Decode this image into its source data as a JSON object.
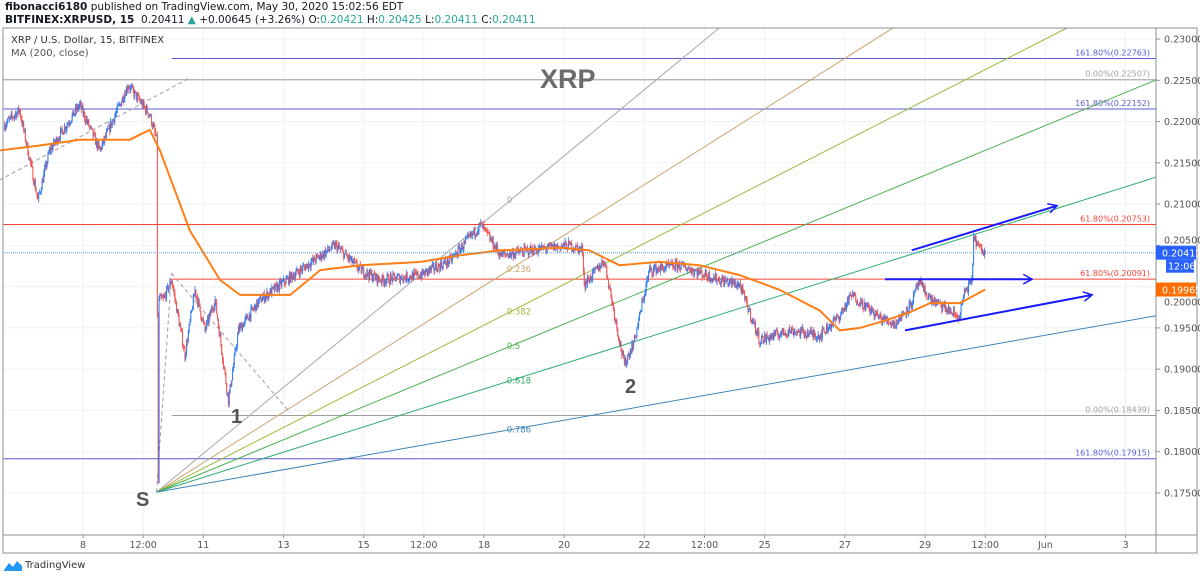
{
  "header": {
    "publisher": "fibonacci6180",
    "published_text": "published on TradingView.com, May 30, 2020 15:02:56 EDT",
    "symbol": "BITFINEX:XRPUSD, 15",
    "last": "0.20411",
    "change": "+0.00645 (+3.26%)",
    "o_label": "O:",
    "o": "0.20421",
    "h_label": "H:",
    "h": "0.20425",
    "l_label": "L:",
    "l": "0.20411",
    "c_label": "C:",
    "c": "0.20411"
  },
  "legend": {
    "title": "XRP / U.S. Dollar, 15, BITFINEX",
    "indicator": "MA (200, close)"
  },
  "brand": {
    "name": "TradingView",
    "icon": "tradingview-logo-icon"
  },
  "colors": {
    "up": "#3179f5",
    "down": "#ef5350",
    "ma": "#ff7f17",
    "last_price_bg": "#2962ff",
    "ma_label_bg": "#ff6d00",
    "grid": "#edf2f7",
    "arrow": "#1a1aff"
  },
  "chart_data": {
    "type": "candlestick",
    "timeframe": "15",
    "y_axis": {
      "range": [
        0.1715,
        0.232
      ],
      "ticks": [
        "0.23000",
        "0.22500",
        "0.22000",
        "0.21500",
        "0.21000",
        "0.20500",
        "0.20000",
        "0.19500",
        "0.19000",
        "0.18500",
        "0.18000",
        "0.17500"
      ],
      "tick_values": [
        0.23,
        0.225,
        0.22,
        0.215,
        0.21,
        0.205,
        0.2,
        0.195,
        0.19,
        0.185,
        0.18,
        0.175
      ]
    },
    "x_axis": {
      "ticks": [
        {
          "label": "8",
          "t": "2020-05-08T00:00"
        },
        {
          "label": "12:00",
          "t": "2020-05-09T12:00"
        },
        {
          "label": "11",
          "t": "2020-05-11T00:00"
        },
        {
          "label": "13",
          "t": "2020-05-13T00:00"
        },
        {
          "label": "15",
          "t": "2020-05-15T00:00"
        },
        {
          "label": "12:00",
          "t": "2020-05-16T12:00"
        },
        {
          "label": "18",
          "t": "2020-05-18T00:00"
        },
        {
          "label": "20",
          "t": "2020-05-20T00:00"
        },
        {
          "label": "22",
          "t": "2020-05-22T00:00"
        },
        {
          "label": "12:00",
          "t": "2020-05-23T12:00"
        },
        {
          "label": "25",
          "t": "2020-05-25T00:00"
        },
        {
          "label": "27",
          "t": "2020-05-27T00:00"
        },
        {
          "label": "29",
          "t": "2020-05-29T00:00"
        },
        {
          "label": "12:00",
          "t": "2020-05-30T12:00"
        },
        {
          "label": "Jun",
          "t": "2020-06-01T00:00"
        },
        {
          "label": "3",
          "t": "2020-06-03T00:00"
        }
      ]
    },
    "grid": true,
    "price_path": [
      [
        "2020-05-06T01:00",
        0.2196
      ],
      [
        "2020-05-06T10:00",
        0.2214
      ],
      [
        "2020-05-06T21:00",
        0.2105
      ],
      [
        "2020-05-07T04:00",
        0.2165
      ],
      [
        "2020-05-07T22:00",
        0.222
      ],
      [
        "2020-05-08T10:00",
        0.2165
      ],
      [
        "2020-05-09T03:00",
        0.2244
      ],
      [
        "2020-05-09T16:00",
        0.2208
      ],
      [
        "2020-05-09T20:00",
        0.2178
      ],
      [
        "2020-05-09T21:00",
        0.176
      ],
      [
        "2020-05-09T21:30",
        0.1985
      ],
      [
        "2020-05-10T00:00",
        0.1984
      ],
      [
        "2020-05-10T05:00",
        0.2008
      ],
      [
        "2020-05-10T13:00",
        0.1917
      ],
      [
        "2020-05-10T19:00",
        0.1996
      ],
      [
        "2020-05-11T01:00",
        0.1947
      ],
      [
        "2020-05-11T07:00",
        0.1984
      ],
      [
        "2020-05-11T15:00",
        0.1862
      ],
      [
        "2020-05-11T21:00",
        0.1947
      ],
      [
        "2020-05-12T10:00",
        0.1984
      ],
      [
        "2020-05-13T10:00",
        0.202
      ],
      [
        "2020-05-14T07:00",
        0.205
      ],
      [
        "2020-05-14T22:00",
        0.202
      ],
      [
        "2020-05-15T10:00",
        0.2008
      ],
      [
        "2020-05-16T10:00",
        0.2014
      ],
      [
        "2020-05-17T04:00",
        0.2032
      ],
      [
        "2020-05-17T22:00",
        0.2075
      ],
      [
        "2020-05-18T10:00",
        0.2038
      ],
      [
        "2020-05-19T04:00",
        0.2044
      ],
      [
        "2020-05-20T03:00",
        0.205
      ],
      [
        "2020-05-20T11:00",
        0.2044
      ],
      [
        "2020-05-20T12:00",
        0.2002
      ],
      [
        "2020-05-21T00:00",
        0.2032
      ],
      [
        "2020-05-21T09:00",
        0.1935
      ],
      [
        "2020-05-21T12:00",
        0.1905
      ],
      [
        "2020-05-21T18:00",
        0.1935
      ],
      [
        "2020-05-22T03:00",
        0.202
      ],
      [
        "2020-05-22T21:00",
        0.2026
      ],
      [
        "2020-05-23T21:00",
        0.2008
      ],
      [
        "2020-05-24T09:00",
        0.2002
      ],
      [
        "2020-05-24T21:00",
        0.1935
      ],
      [
        "2020-05-25T15:00",
        0.1947
      ],
      [
        "2020-05-26T09:00",
        0.1941
      ],
      [
        "2020-05-26T21:00",
        0.1965
      ],
      [
        "2020-05-27T04:00",
        0.199
      ],
      [
        "2020-05-27T21:00",
        0.1962
      ],
      [
        "2020-05-28T06:00",
        0.1955
      ],
      [
        "2020-05-28T16:00",
        0.198
      ],
      [
        "2020-05-28T20:00",
        0.2005
      ],
      [
        "2020-05-29T03:00",
        0.1985
      ],
      [
        "2020-05-29T15:00",
        0.197
      ],
      [
        "2020-05-29T20:00",
        0.1962
      ],
      [
        "2020-05-30T00:00",
        0.1995
      ],
      [
        "2020-05-30T04:00",
        0.2005
      ],
      [
        "2020-05-30T05:00",
        0.206
      ],
      [
        "2020-05-30T09:00",
        0.2045
      ],
      [
        "2020-05-30T12:00",
        0.2041
      ]
    ],
    "ma_200": [
      [
        "2020-05-05T22:00",
        0.2165
      ],
      [
        "2020-05-06T22:00",
        0.2171
      ],
      [
        "2020-05-07T22:00",
        0.2178
      ],
      [
        "2020-05-09T04:00",
        0.2178
      ],
      [
        "2020-05-09T16:00",
        0.219
      ],
      [
        "2020-05-09T22:00",
        0.2165
      ],
      [
        "2020-05-10T16:00",
        0.2068
      ],
      [
        "2020-05-11T10:00",
        0.2008
      ],
      [
        "2020-05-11T22:00",
        0.199
      ],
      [
        "2020-05-13T04:00",
        0.199
      ],
      [
        "2020-05-13T22:00",
        0.202
      ],
      [
        "2020-05-14T22:00",
        0.2026
      ],
      [
        "2020-05-16T10:00",
        0.203
      ],
      [
        "2020-05-17T10:00",
        0.2038
      ],
      [
        "2020-05-18T10:00",
        0.2044
      ],
      [
        "2020-05-19T22:00",
        0.2047
      ],
      [
        "2020-05-20T15:00",
        0.2044
      ],
      [
        "2020-05-21T09:00",
        0.2026
      ],
      [
        "2020-05-22T09:00",
        0.203
      ],
      [
        "2020-05-23T09:00",
        0.2026
      ],
      [
        "2020-05-24T09:00",
        0.2014
      ],
      [
        "2020-05-25T09:00",
        0.1996
      ],
      [
        "2020-05-26T09:00",
        0.1971
      ],
      [
        "2020-05-26T21:00",
        0.1947
      ],
      [
        "2020-05-27T09:00",
        0.195
      ],
      [
        "2020-05-27T21:00",
        0.1957
      ],
      [
        "2020-05-28T15:00",
        0.1969
      ],
      [
        "2020-05-29T03:00",
        0.198
      ],
      [
        "2020-05-29T21:00",
        0.198
      ],
      [
        "2020-05-30T06:00",
        0.199
      ],
      [
        "2020-05-30T12:00",
        0.19965
      ]
    ],
    "price_labels": {
      "last": "0.20411",
      "countdown": "12:06",
      "ma": "0.19965"
    },
    "fib_levels": [
      {
        "label": "161.80%(0.22763)",
        "price": 0.22763,
        "color": "#5b5bd6",
        "from": "2020-05-10T05:00"
      },
      {
        "label": "0.00%(0.22507)",
        "price": 0.22507,
        "color": "#9e9e9e",
        "from": null
      },
      {
        "label": "161.80%(0.22152)",
        "price": 0.22152,
        "color": "#5b5bd6",
        "from": null
      },
      {
        "label": "61.80%(0.20753)",
        "price": 0.20753,
        "color": "#f44336",
        "from": null
      },
      {
        "label": "61.80%(0.20091)",
        "price": 0.20091,
        "color": "#f44336",
        "from": "2020-05-10T05:00"
      },
      {
        "label": "0.00%(0.18439)",
        "price": 0.18439,
        "color": "#9e9e9e",
        "from": "2020-05-10T05:00"
      },
      {
        "label": "161.80%(0.17915)",
        "price": 0.17915,
        "color": "#5b5bd6",
        "from": null
      }
    ],
    "fib_fan": {
      "origin": [
        "2020-05-09T20:00",
        0.1751
      ],
      "end_time": "2020-05-18T16:00",
      "top": 0.2105,
      "levels": [
        {
          "label": "0",
          "level": 0,
          "color": "#a8a8a8"
        },
        {
          "label": "0.236",
          "level": 0.236,
          "color": "#c9a46e"
        },
        {
          "label": "0.382",
          "level": 0.382,
          "color": "#9bbb3b"
        },
        {
          "label": "0.5",
          "level": 0.5,
          "color": "#4caf50"
        },
        {
          "label": "0.618",
          "level": 0.618,
          "color": "#2eaa6f"
        },
        {
          "label": "0.786",
          "level": 0.786,
          "color": "#3d84b8"
        }
      ]
    },
    "dashed_lines": [
      [
        [
          "2020-05-05T22:00",
          0.2129
        ],
        [
          "2020-05-10T16:00",
          0.2253
        ]
      ],
      [
        [
          "2020-05-09T20:00",
          0.1751
        ],
        [
          "2020-05-10T05:00",
          0.2016
        ]
      ],
      [
        [
          "2020-05-10T05:00",
          0.2016
        ],
        [
          "2020-05-13T04:00",
          0.1847
        ]
      ]
    ],
    "arrows": [
      [
        [
          "2020-05-28T16:00",
          0.2044
        ],
        [
          "2020-06-01T07:00",
          0.2098
        ]
      ],
      [
        [
          "2020-05-28T00:00",
          0.2009
        ],
        [
          "2020-05-31T16:00",
          0.2009
        ]
      ],
      [
        [
          "2020-05-28T12:00",
          0.1947
        ],
        [
          "2020-06-02T04:00",
          0.199
        ]
      ]
    ],
    "annotations": {
      "title_text": "XRP",
      "wave_s": "S",
      "wave_1": "1",
      "wave_2": "2"
    }
  }
}
